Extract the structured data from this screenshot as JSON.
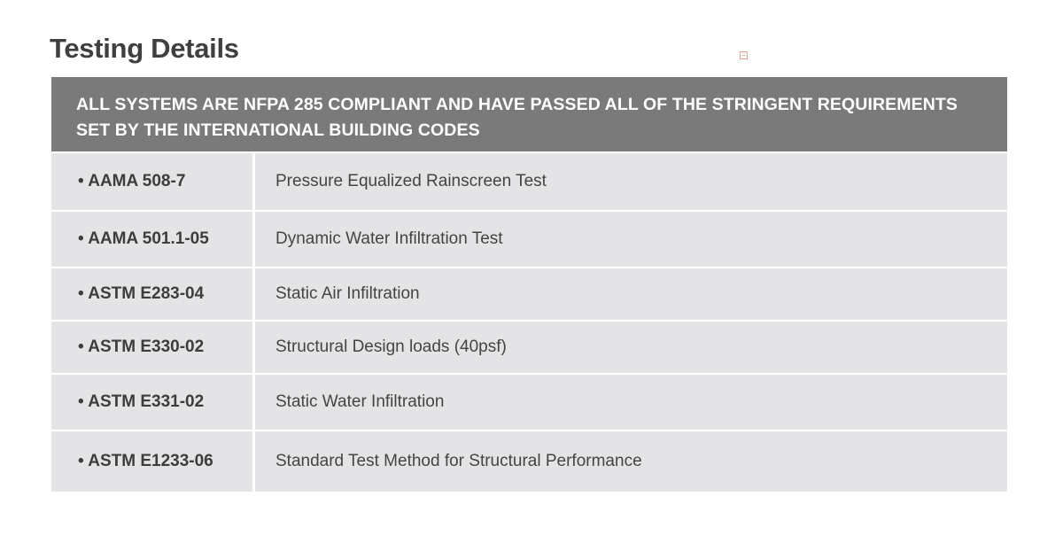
{
  "title": "Testing Details",
  "table": {
    "header": "ALL  SYSTEMS ARE NFPA 285 COMPLIANT AND HAVE PASSED ALL OF THE STRINGENT REQUIREMENTS SET BY THE INTERNATIONAL BUILDING CODES",
    "rows": [
      {
        "standard": "• AAMA 508-7",
        "description": "Pressure Equalized Rainscreen Test"
      },
      {
        "standard": "• AAMA 501.1-05",
        "description": "Dynamic Water Infiltration Test"
      },
      {
        "standard": "• ASTM E283-04",
        "description": "Static Air Infiltration"
      },
      {
        "standard": "• ASTM E330-02",
        "description": "Structural Design loads (40psf)"
      },
      {
        "standard": "• ASTM E331-02",
        "description": "Static Water Infiltration"
      },
      {
        "standard": "• ASTM E1233-06",
        "description": "Standard Test Method for Structural Performance"
      }
    ]
  },
  "colors": {
    "header_bg": "#7a7a7a",
    "row_bg": "#e4e4e6",
    "title_text": "#3f3f3f"
  }
}
